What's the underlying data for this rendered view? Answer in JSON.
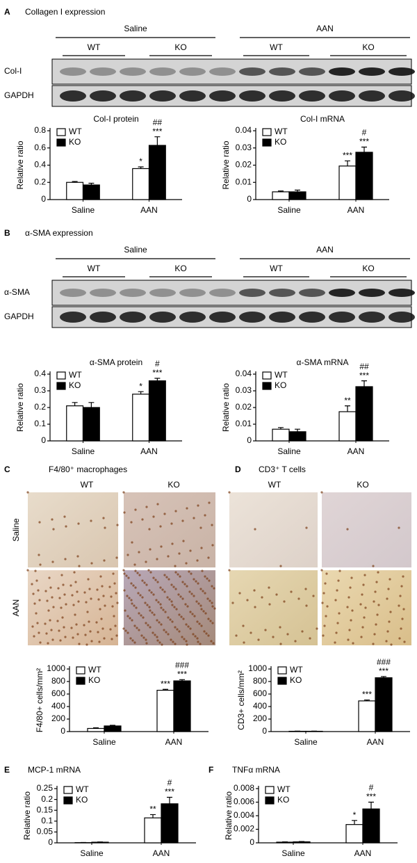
{
  "panels": [
    {
      "label": "A",
      "title": "Collagen I expression",
      "groups": [
        "Saline",
        "AAN"
      ],
      "subgroups": [
        "WT",
        "KO",
        "WT",
        "KO"
      ],
      "rows": [
        "Col-I",
        "GAPDH"
      ]
    },
    {
      "label": "B",
      "title": "α-SMA expression",
      "groups": [
        "Saline",
        "AAN"
      ],
      "subgroups": [
        "WT",
        "KO",
        "WT",
        "KO"
      ],
      "rows": [
        "α-SMA",
        "GAPDH"
      ]
    },
    {
      "label": "C",
      "title": "F4/80⁺ macrophages",
      "columns": [
        "WT",
        "KO"
      ],
      "rows": [
        "Saline",
        "AAN"
      ]
    },
    {
      "label": "D",
      "title": "CD3⁺ T cells",
      "columns": [
        "WT",
        "KO"
      ]
    },
    {
      "label": "E"
    },
    {
      "label": "F"
    }
  ],
  "chart_data": [
    {
      "type": "bar",
      "title": "Col-I protein",
      "ylabel": "Relative ratio",
      "categories": [
        "Saline",
        "AAN"
      ],
      "ylim": [
        0,
        0.8
      ],
      "yticks": [
        0,
        0.2,
        0.4,
        0.6,
        0.8
      ],
      "series": [
        {
          "name": "WT",
          "color": "#ffffff",
          "values": [
            0.2,
            0.36
          ],
          "errors": [
            0.01,
            0.02
          ],
          "significance": [
            null,
            "*"
          ]
        },
        {
          "name": "KO",
          "color": "#000000",
          "values": [
            0.17,
            0.63
          ],
          "errors": [
            0.02,
            0.1
          ],
          "significance": [
            null,
            "***"
          ]
        }
      ],
      "hash_marks": [
        null,
        "##"
      ]
    },
    {
      "type": "bar",
      "title": "Col-I mRNA",
      "ylabel": "Relative ratio",
      "categories": [
        "Saline",
        "AAN"
      ],
      "ylim": [
        0,
        0.04
      ],
      "yticks": [
        0,
        0.01,
        0.02,
        0.03,
        0.04
      ],
      "series": [
        {
          "name": "WT",
          "color": "#ffffff",
          "values": [
            0.0045,
            0.0195
          ],
          "errors": [
            0.0005,
            0.003
          ],
          "significance": [
            null,
            "***"
          ]
        },
        {
          "name": "KO",
          "color": "#000000",
          "values": [
            0.0045,
            0.0275
          ],
          "errors": [
            0.001,
            0.003
          ],
          "significance": [
            null,
            "***"
          ]
        }
      ],
      "hash_marks": [
        null,
        "#"
      ]
    },
    {
      "type": "bar",
      "title": "α-SMA protein",
      "ylabel": "Relative ratio",
      "categories": [
        "Saline",
        "AAN"
      ],
      "ylim": [
        0,
        0.4
      ],
      "yticks": [
        0,
        0.1,
        0.2,
        0.3,
        0.4
      ],
      "series": [
        {
          "name": "WT",
          "color": "#ffffff",
          "values": [
            0.21,
            0.28
          ],
          "errors": [
            0.02,
            0.015
          ],
          "significance": [
            null,
            "*"
          ]
        },
        {
          "name": "KO",
          "color": "#000000",
          "values": [
            0.2,
            0.36
          ],
          "errors": [
            0.03,
            0.015
          ],
          "significance": [
            null,
            "***"
          ]
        }
      ],
      "hash_marks": [
        null,
        "#"
      ]
    },
    {
      "type": "bar",
      "title": "α-SMA mRNA",
      "ylabel": "Relative ratio",
      "categories": [
        "Saline",
        "AAN"
      ],
      "ylim": [
        0,
        0.04
      ],
      "yticks": [
        0,
        0.01,
        0.02,
        0.03,
        0.04
      ],
      "series": [
        {
          "name": "WT",
          "color": "#ffffff",
          "values": [
            0.007,
            0.0175
          ],
          "errors": [
            0.001,
            0.0035
          ],
          "significance": [
            null,
            "**"
          ]
        },
        {
          "name": "KO",
          "color": "#000000",
          "values": [
            0.0055,
            0.0325
          ],
          "errors": [
            0.0015,
            0.0035
          ],
          "significance": [
            null,
            "***"
          ]
        }
      ],
      "hash_marks": [
        null,
        "##"
      ]
    },
    {
      "type": "bar",
      "ylabel": "F4/80+ cells/mm²",
      "categories": [
        "Saline",
        "AAN"
      ],
      "ylim": [
        0,
        1000
      ],
      "yticks": [
        0,
        200,
        400,
        600,
        800,
        1000
      ],
      "series": [
        {
          "name": "WT",
          "color": "#ffffff",
          "values": [
            50,
            660
          ],
          "errors": [
            10,
            15
          ],
          "significance": [
            null,
            "***"
          ]
        },
        {
          "name": "KO",
          "color": "#000000",
          "values": [
            90,
            810
          ],
          "errors": [
            10,
            20
          ],
          "significance": [
            null,
            "***"
          ]
        }
      ],
      "hash_marks": [
        null,
        "###"
      ]
    },
    {
      "type": "bar",
      "ylabel": "CD3+ cells/mm²",
      "categories": [
        "Saline",
        "AAN"
      ],
      "ylim": [
        0,
        1000
      ],
      "yticks": [
        0,
        200,
        400,
        600,
        800,
        1000
      ],
      "series": [
        {
          "name": "WT",
          "color": "#ffffff",
          "values": [
            5,
            490
          ],
          "errors": [
            2,
            15
          ],
          "significance": [
            null,
            "***"
          ]
        },
        {
          "name": "KO",
          "color": "#000000",
          "values": [
            5,
            860
          ],
          "errors": [
            2,
            20
          ],
          "significance": [
            null,
            "***"
          ]
        }
      ],
      "hash_marks": [
        null,
        "###"
      ]
    },
    {
      "type": "bar",
      "title": "MCP-1 mRNA",
      "ylabel": "Relative ratio",
      "categories": [
        "Saline",
        "AAN"
      ],
      "ylim": [
        0,
        0.25
      ],
      "yticks": [
        0,
        0.05,
        0.1,
        0.15,
        0.2,
        0.25
      ],
      "series": [
        {
          "name": "WT",
          "color": "#ffffff",
          "values": [
            0.001,
            0.115
          ],
          "errors": [
            0.0005,
            0.015
          ],
          "significance": [
            null,
            "**"
          ]
        },
        {
          "name": "KO",
          "color": "#000000",
          "values": [
            0.003,
            0.18
          ],
          "errors": [
            0.001,
            0.03
          ],
          "significance": [
            null,
            "***"
          ]
        }
      ],
      "hash_marks": [
        null,
        "#"
      ]
    },
    {
      "type": "bar",
      "title": "TNFα mRNA",
      "ylabel": "Relative ratio",
      "categories": [
        "Saline",
        "AAN"
      ],
      "ylim": [
        0,
        0.008
      ],
      "yticks": [
        0,
        0.002,
        0.004,
        0.006,
        0.008
      ],
      "series": [
        {
          "name": "WT",
          "color": "#ffffff",
          "values": [
            0.0001,
            0.0027
          ],
          "errors": [
            5e-05,
            0.0006
          ],
          "significance": [
            null,
            "*"
          ]
        },
        {
          "name": "KO",
          "color": "#000000",
          "values": [
            0.00015,
            0.005
          ],
          "errors": [
            5e-05,
            0.001
          ],
          "significance": [
            null,
            "***"
          ]
        }
      ],
      "hash_marks": [
        null,
        "#"
      ]
    }
  ]
}
